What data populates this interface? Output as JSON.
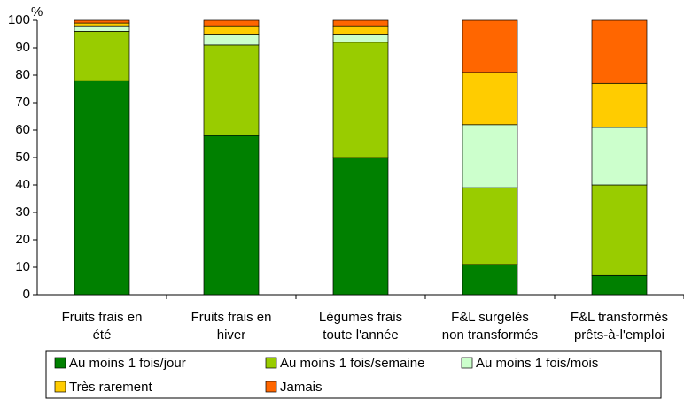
{
  "chart_data": {
    "type": "stacked_bar",
    "y_label": "%",
    "categories": [
      [
        "Fruits frais en",
        "été"
      ],
      [
        "Fruits frais en",
        "hiver"
      ],
      [
        "Légumes frais",
        "toute l'année"
      ],
      [
        "F&L surgelés",
        "non transformés"
      ],
      [
        "F&L transformés",
        "prêts-à-l'emploi"
      ]
    ],
    "series": [
      {
        "name": "Au moins 1 fois/jour",
        "color": "#008000",
        "values": [
          78,
          58,
          50,
          11,
          7
        ]
      },
      {
        "name": "Au moins 1 fois/semaine",
        "color": "#99cc00",
        "values": [
          18,
          33,
          42,
          28,
          33
        ]
      },
      {
        "name": "Au moins 1 fois/mois",
        "color": "#ccffcc",
        "values": [
          2,
          4,
          3,
          23,
          21
        ]
      },
      {
        "name": "Très rarement",
        "color": "#ffcc00",
        "values": [
          1,
          3,
          3,
          19,
          16
        ]
      },
      {
        "name": "Jamais",
        "color": "#ff6600",
        "values": [
          1,
          2,
          2,
          19,
          23
        ]
      }
    ],
    "ylim": [
      0,
      100
    ],
    "yticks": [
      0,
      10,
      20,
      30,
      40,
      50,
      60,
      70,
      80,
      90,
      100
    ]
  }
}
